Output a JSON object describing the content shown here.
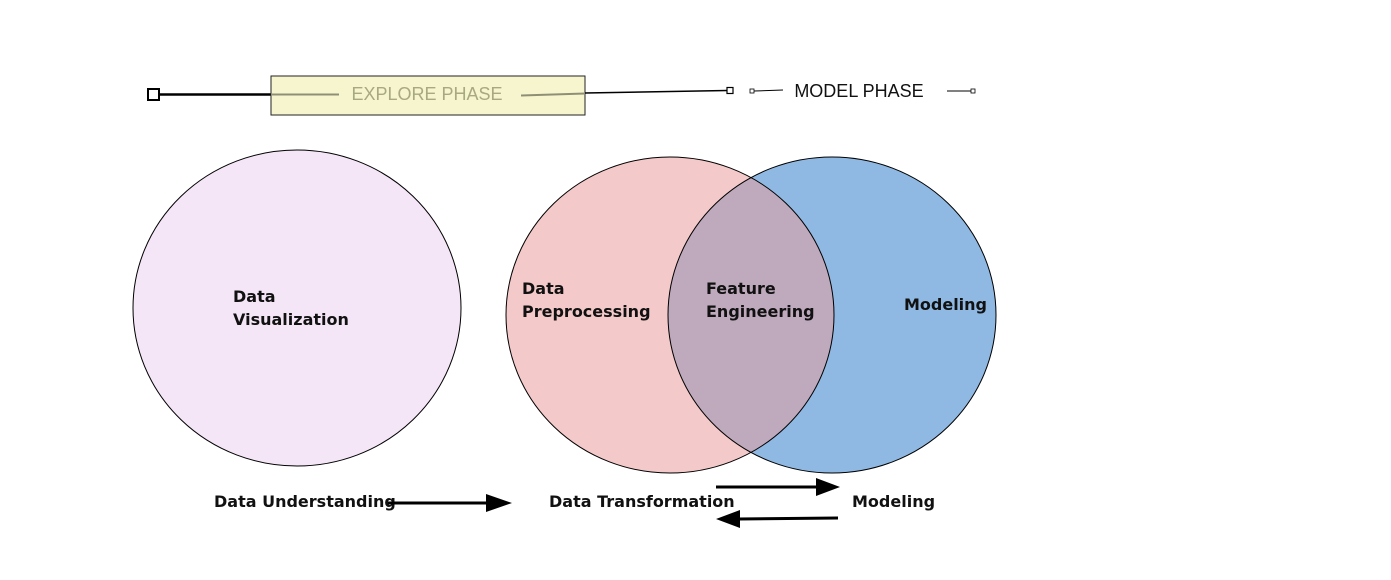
{
  "phases": {
    "explore_label": "EXPLORE PHASE",
    "model_label": "MODEL PHASE"
  },
  "circles": {
    "visualization": {
      "line1": "Data",
      "line2": "Visualization",
      "color": "#f5e6f7"
    },
    "preprocessing": {
      "line1": "Data",
      "line2": "Preprocessing",
      "color": "#f4c9c9"
    },
    "feature_engineering": {
      "line1": "Feature",
      "line2": "Engineering",
      "color": "#bea9bd"
    },
    "modeling": {
      "line1": "Modeling",
      "color": "#8fb9e3"
    }
  },
  "stages": {
    "understanding": "Data Understanding",
    "transformation": "Data Transformation",
    "modeling": "Modeling"
  },
  "colors": {
    "explore_box": "#f7f5cd",
    "outline": "#000000"
  }
}
